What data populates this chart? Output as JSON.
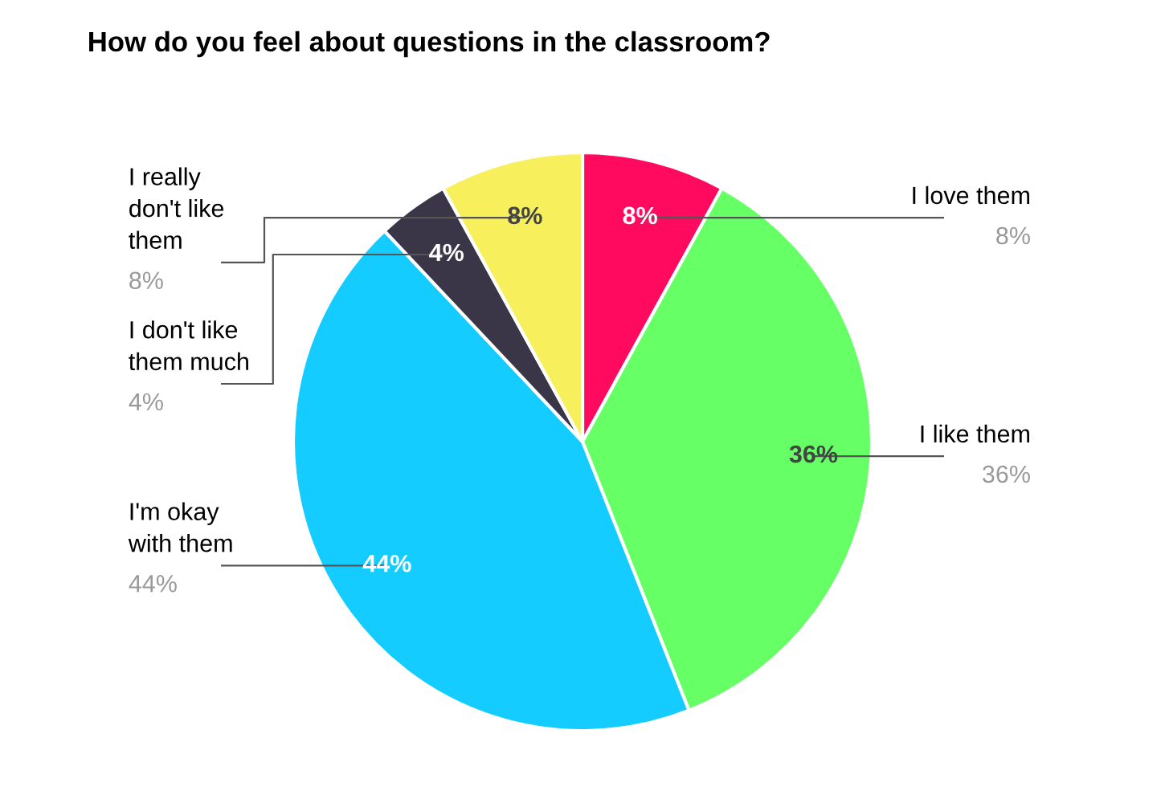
{
  "chart_data": {
    "type": "pie",
    "title": "How do you feel about questions in the classroom?",
    "categories": [
      "I love them",
      "I like them",
      "I'm okay\nwith them",
      "I don't like\nthem much",
      "I really\ndon't like\nthem"
    ],
    "values": [
      8,
      36,
      44,
      4,
      8
    ],
    "colors": [
      "#ff0a5f",
      "#66ff66",
      "#14ccff",
      "#3b3647",
      "#f7f05c"
    ],
    "value_labels": [
      "8%",
      "36%",
      "44%",
      "4%",
      "8%"
    ],
    "annotations": [
      "8%",
      "36%",
      "44%",
      "4%",
      "8%"
    ]
  }
}
